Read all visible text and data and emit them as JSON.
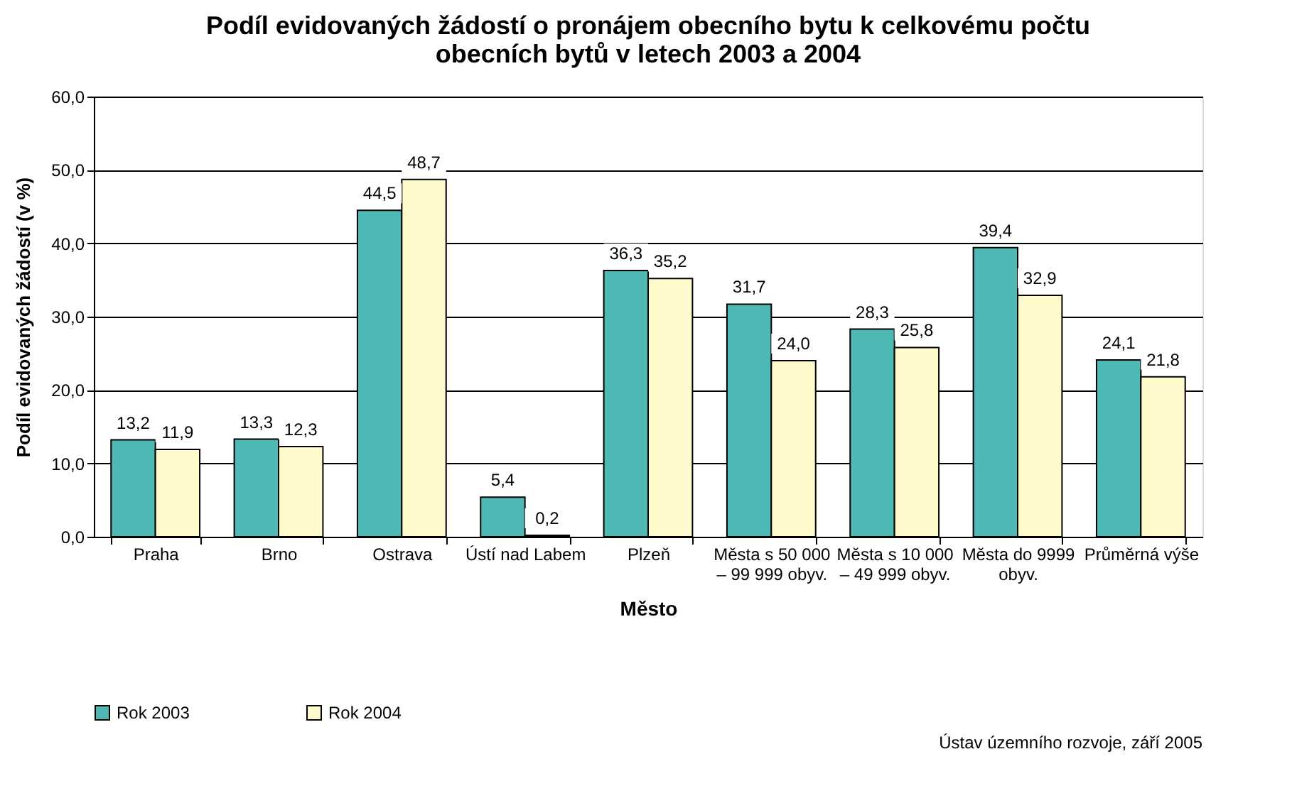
{
  "chart_data": {
    "type": "bar",
    "title": "Podíl evidovaných žádostí o pronájem obecního bytu k celkovému počtu\nobecních bytů v letech 2003 a 2004",
    "xlabel": "Město",
    "ylabel": "Podíl evidovaných žádostí (v %)",
    "categories": [
      "Praha",
      "Brno",
      "Ostrava",
      "Ústí nad Labem",
      "Plzeň",
      "Města s 50 000\n– 99 999 obyv.",
      "Města s 10 000\n– 49 999 obyv.",
      "Města do 9999\nobyv.",
      "Průměrná výše"
    ],
    "series": [
      {
        "name": "Rok 2003",
        "color": "#4db8b4",
        "values": [
          13.2,
          13.3,
          44.5,
          5.4,
          36.3,
          31.7,
          28.3,
          39.4,
          24.1
        ],
        "value_labels": [
          "13,2",
          "13,3",
          "44,5",
          "5,4",
          "36,3",
          "31,7",
          "28,3",
          "39,4",
          "24,1"
        ]
      },
      {
        "name": "Rok 2004",
        "color": "#fffacc",
        "values": [
          11.9,
          12.3,
          48.7,
          0.2,
          35.2,
          24.0,
          25.8,
          32.9,
          21.8
        ],
        "value_labels": [
          "11,9",
          "12,3",
          "48,7",
          "0,2",
          "35,2",
          "24,0",
          "25,8",
          "32,9",
          "21,8"
        ]
      }
    ],
    "ylim": [
      0,
      60
    ],
    "yticks": [
      {
        "value": 0,
        "label": "0,0"
      },
      {
        "value": 10,
        "label": "10,0"
      },
      {
        "value": 20,
        "label": "20,0"
      },
      {
        "value": 30,
        "label": "30,0"
      },
      {
        "value": 40,
        "label": "40,0"
      },
      {
        "value": 50,
        "label": "50,0"
      },
      {
        "value": 60,
        "label": "60,0"
      }
    ],
    "grid": "y",
    "legend": "bottom",
    "annotations": [
      "Ústav územního rozvoje, září 2005"
    ]
  }
}
